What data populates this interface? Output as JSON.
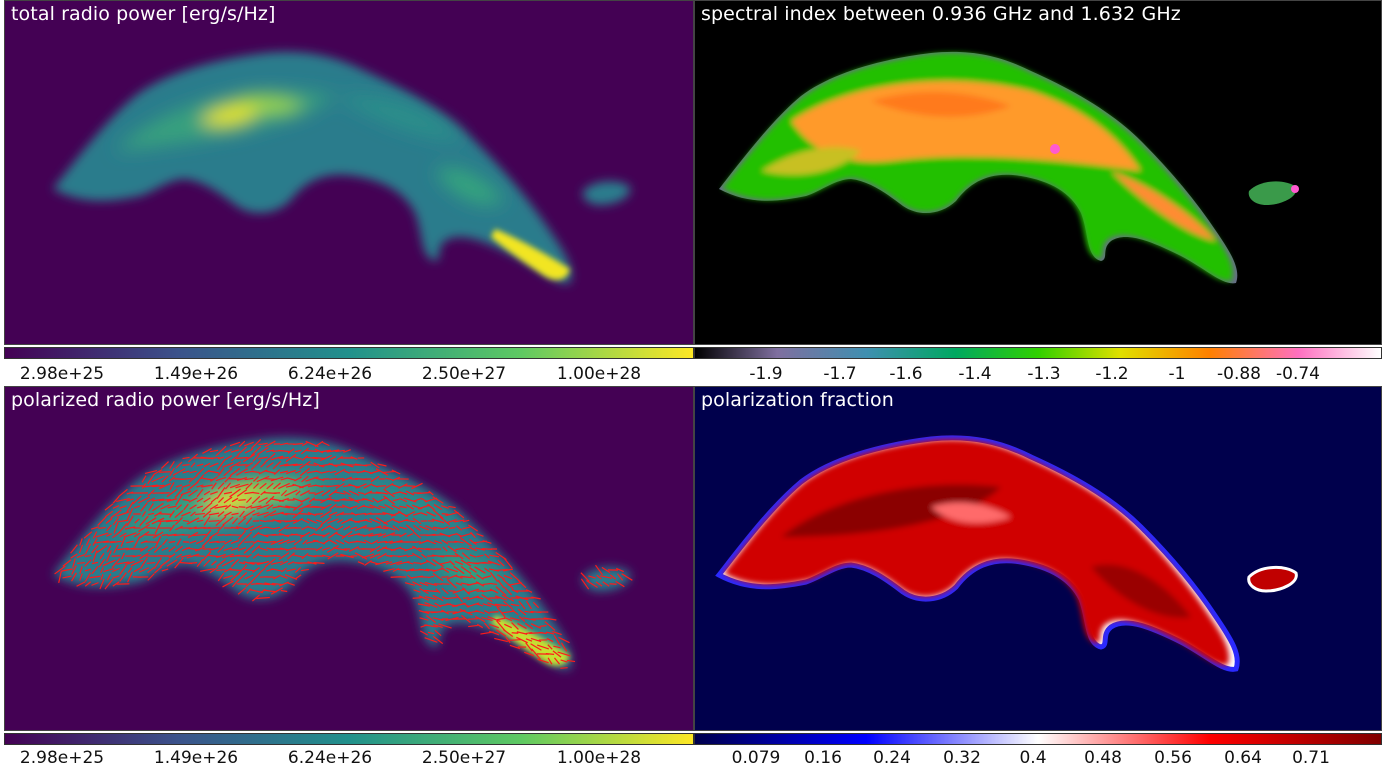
{
  "panels": {
    "total": {
      "title": "total radio power [erg/s/Hz]"
    },
    "spectral": {
      "title": "spectral index between 0.936 GHz and 1.632 GHz"
    },
    "polarized": {
      "title": "polarized radio power [erg/s/Hz]"
    },
    "fraction": {
      "title": "polarization fraction"
    }
  },
  "colorbars": {
    "power_top": {
      "colormap": "viridis",
      "ticks": [
        "2.98e+25",
        "1.49e+26",
        "6.24e+26",
        "2.50e+27",
        "1.00e+28"
      ],
      "colors": [
        "#440154",
        "#3b528b",
        "#21918c",
        "#5ec962",
        "#fde725"
      ]
    },
    "spectral_index": {
      "colormap": "nipy_spectral",
      "ticks": [
        "-1.9",
        "-1.7",
        "-1.6",
        "-1.4",
        "-1.3",
        "-1.2",
        "-1",
        "-0.88",
        "-0.74"
      ],
      "colors": [
        "#000000",
        "#7f7f9f",
        "#3fa0a0",
        "#00c000",
        "#a0e000",
        "#ffd000",
        "#ff6a00",
        "#ff6ad0",
        "#ffffff"
      ]
    },
    "power_bottom": {
      "colormap": "viridis",
      "ticks": [
        "2.98e+25",
        "1.49e+26",
        "6.24e+26",
        "2.50e+27",
        "1.00e+28"
      ],
      "colors": [
        "#440154",
        "#3b528b",
        "#21918c",
        "#5ec962",
        "#fde725"
      ]
    },
    "pol_fraction": {
      "colormap": "seismic",
      "ticks": [
        "0.079",
        "0.16",
        "0.24",
        "0.32",
        "0.4",
        "0.48",
        "0.56",
        "0.64",
        "0.71"
      ],
      "colors": [
        "#00004c",
        "#0000ff",
        "#ffffff",
        "#ff0000",
        "#800000"
      ]
    }
  },
  "chart_data": [
    {
      "type": "heatmap",
      "title": "total radio power [erg/s/Hz]",
      "colormap": "viridis",
      "colorbar_ticks": [
        "2.98e+25",
        "1.49e+26",
        "6.24e+26",
        "2.50e+27",
        "1.00e+28"
      ]
    },
    {
      "type": "heatmap",
      "title": "spectral index between 0.936 GHz and 1.632 GHz",
      "colormap": "nipy_spectral",
      "colorbar_ticks": [
        "-1.9",
        "-1.7",
        "-1.6",
        "-1.4",
        "-1.3",
        "-1.2",
        "-1",
        "-0.88",
        "-0.74"
      ]
    },
    {
      "type": "heatmap",
      "title": "polarized radio power [erg/s/Hz]",
      "colormap": "viridis",
      "overlay": "red polarization vectors",
      "colorbar_ticks": [
        "2.98e+25",
        "1.49e+26",
        "6.24e+26",
        "2.50e+27",
        "1.00e+28"
      ]
    },
    {
      "type": "heatmap",
      "title": "polarization fraction",
      "colormap": "seismic",
      "colorbar_ticks": [
        "0.079",
        "0.16",
        "0.24",
        "0.32",
        "0.4",
        "0.48",
        "0.56",
        "0.64",
        "0.71"
      ]
    }
  ]
}
